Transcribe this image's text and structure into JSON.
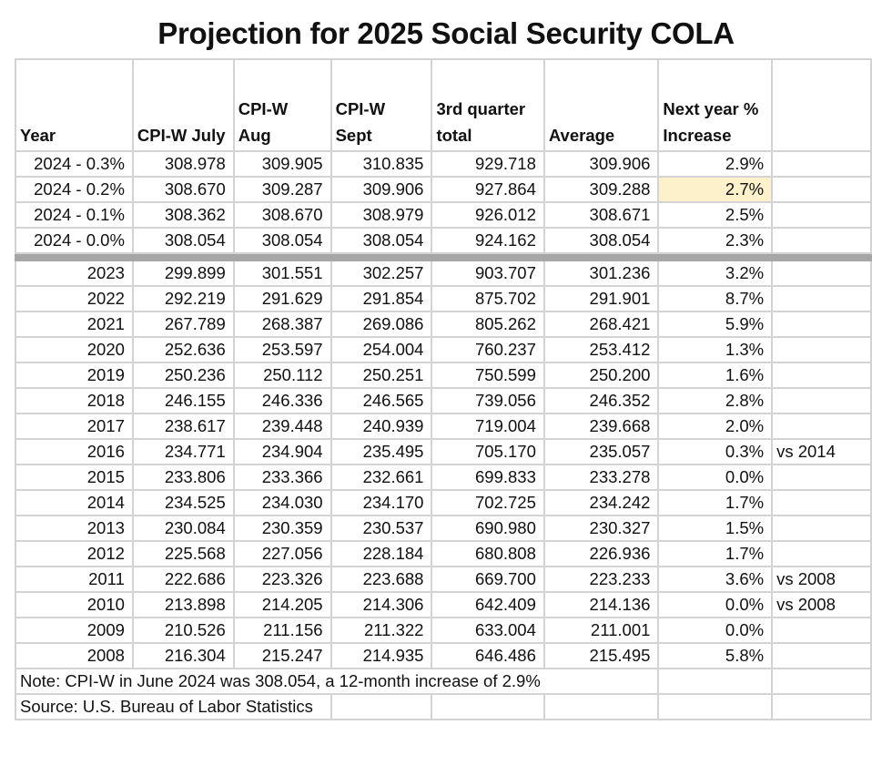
{
  "title": "Projection for 2025 Social Security COLA",
  "highlight_color": "#fdf1cc",
  "headers": [
    "Year",
    "CPI-W July",
    "CPI-W Aug",
    "CPI-W Sept",
    "3rd quarter total",
    "Average",
    "Next year % Increase",
    ""
  ],
  "projections": [
    {
      "year": "2024 - 0.3%",
      "july": "308.978",
      "aug": "309.905",
      "sept": "310.835",
      "total": "929.718",
      "avg": "309.906",
      "pct": "2.9%",
      "note": ""
    },
    {
      "year": "2024 - 0.2%",
      "july": "308.670",
      "aug": "309.287",
      "sept": "309.906",
      "total": "927.864",
      "avg": "309.288",
      "pct": "2.7%",
      "note": "",
      "highlight": true
    },
    {
      "year": "2024 - 0.1%",
      "july": "308.362",
      "aug": "308.670",
      "sept": "308.979",
      "total": "926.012",
      "avg": "308.671",
      "pct": "2.5%",
      "note": ""
    },
    {
      "year": "2024 - 0.0%",
      "july": "308.054",
      "aug": "308.054",
      "sept": "308.054",
      "total": "924.162",
      "avg": "308.054",
      "pct": "2.3%",
      "note": ""
    }
  ],
  "history": [
    {
      "year": "2023",
      "july": "299.899",
      "aug": "301.551",
      "sept": "302.257",
      "total": "903.707",
      "avg": "301.236",
      "pct": "3.2%",
      "note": ""
    },
    {
      "year": "2022",
      "july": "292.219",
      "aug": "291.629",
      "sept": "291.854",
      "total": "875.702",
      "avg": "291.901",
      "pct": "8.7%",
      "note": ""
    },
    {
      "year": "2021",
      "july": "267.789",
      "aug": "268.387",
      "sept": "269.086",
      "total": "805.262",
      "avg": "268.421",
      "pct": "5.9%",
      "note": ""
    },
    {
      "year": "2020",
      "july": "252.636",
      "aug": "253.597",
      "sept": "254.004",
      "total": "760.237",
      "avg": "253.412",
      "pct": "1.3%",
      "note": ""
    },
    {
      "year": "2019",
      "july": "250.236",
      "aug": "250.112",
      "sept": "250.251",
      "total": "750.599",
      "avg": "250.200",
      "pct": "1.6%",
      "note": ""
    },
    {
      "year": "2018",
      "july": "246.155",
      "aug": "246.336",
      "sept": "246.565",
      "total": "739.056",
      "avg": "246.352",
      "pct": "2.8%",
      "note": ""
    },
    {
      "year": "2017",
      "july": "238.617",
      "aug": "239.448",
      "sept": "240.939",
      "total": "719.004",
      "avg": "239.668",
      "pct": "2.0%",
      "note": ""
    },
    {
      "year": "2016",
      "july": "234.771",
      "aug": "234.904",
      "sept": "235.495",
      "total": "705.170",
      "avg": "235.057",
      "pct": "0.3%",
      "note": "vs 2014"
    },
    {
      "year": "2015",
      "july": "233.806",
      "aug": "233.366",
      "sept": "232.661",
      "total": "699.833",
      "avg": "233.278",
      "pct": "0.0%",
      "note": ""
    },
    {
      "year": "2014",
      "july": "234.525",
      "aug": "234.030",
      "sept": "234.170",
      "total": "702.725",
      "avg": "234.242",
      "pct": "1.7%",
      "note": ""
    },
    {
      "year": "2013",
      "july": "230.084",
      "aug": "230.359",
      "sept": "230.537",
      "total": "690.980",
      "avg": "230.327",
      "pct": "1.5%",
      "note": ""
    },
    {
      "year": "2012",
      "july": "225.568",
      "aug": "227.056",
      "sept": "228.184",
      "total": "680.808",
      "avg": "226.936",
      "pct": "1.7%",
      "note": ""
    },
    {
      "year": "2011",
      "july": "222.686",
      "aug": "223.326",
      "sept": "223.688",
      "total": "669.700",
      "avg": "223.233",
      "pct": "3.6%",
      "note": "vs 2008"
    },
    {
      "year": "2010",
      "july": "213.898",
      "aug": "214.205",
      "sept": "214.306",
      "total": "642.409",
      "avg": "214.136",
      "pct": "0.0%",
      "note": "vs 2008"
    },
    {
      "year": "2009",
      "july": "210.526",
      "aug": "211.156",
      "sept": "211.322",
      "total": "633.004",
      "avg": "211.001",
      "pct": "0.0%",
      "note": ""
    },
    {
      "year": "2008",
      "july": "216.304",
      "aug": "215.247",
      "sept": "214.935",
      "total": "646.486",
      "avg": "215.495",
      "pct": "5.8%",
      "note": ""
    }
  ],
  "footnote": "Note: CPI-W in June 2024 was 308.054, a 12-month increase of 2.9%",
  "source": "Source: U.S. Bureau of Labor Statistics"
}
